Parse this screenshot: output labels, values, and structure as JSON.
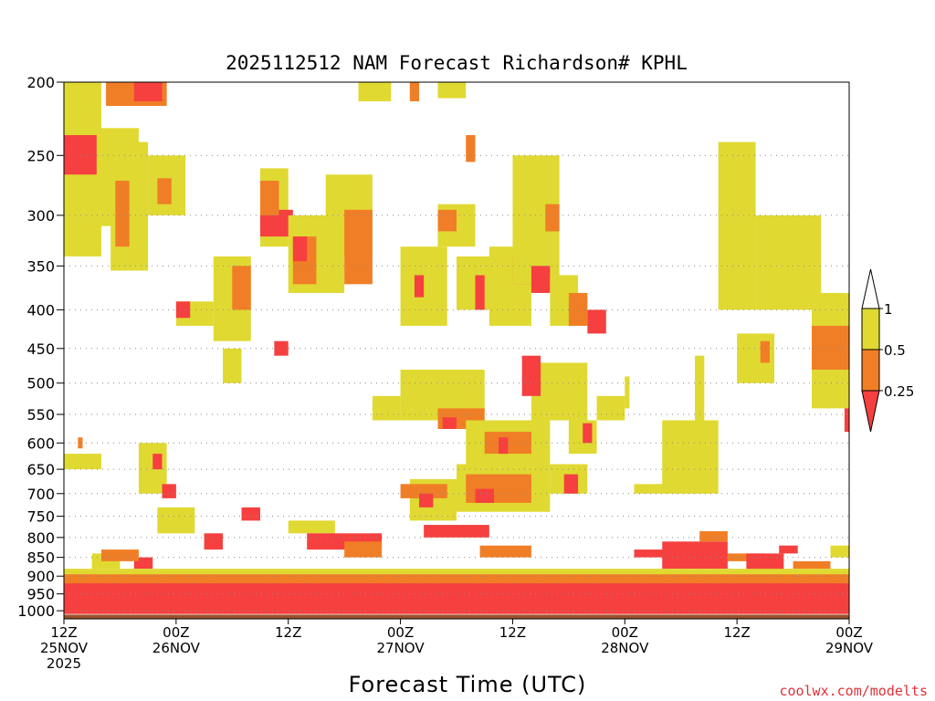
{
  "chart_data": {
    "type": "heatmap",
    "title": "2025112512 NAM Forecast Richardson# KPHL",
    "xlabel": "Forecast Time (UTC)",
    "ylabel": "",
    "credit": "coolwx.com/modelts",
    "y_scale": "log-pressure, inverted",
    "ylim": [
      1025,
      200
    ],
    "y_ticks": [
      200,
      250,
      300,
      350,
      400,
      450,
      500,
      550,
      600,
      650,
      700,
      750,
      800,
      850,
      900,
      950,
      1000
    ],
    "x_range_hours": [
      0,
      84
    ],
    "x_ticks": [
      {
        "hour": 0,
        "label1": "12Z",
        "label2": "25NOV",
        "label3": "2025"
      },
      {
        "hour": 12,
        "label1": "00Z",
        "label2": "26NOV",
        "label3": ""
      },
      {
        "hour": 24,
        "label1": "12Z",
        "label2": "",
        "label3": ""
      },
      {
        "hour": 36,
        "label1": "00Z",
        "label2": "27NOV",
        "label3": ""
      },
      {
        "hour": 48,
        "label1": "12Z",
        "label2": "",
        "label3": ""
      },
      {
        "hour": 60,
        "label1": "00Z",
        "label2": "28NOV",
        "label3": ""
      },
      {
        "hour": 72,
        "label1": "12Z",
        "label2": "",
        "label3": ""
      },
      {
        "hour": 84,
        "label1": "00Z",
        "label2": "29NOV",
        "label3": ""
      }
    ],
    "legend": {
      "levels": [
        "1",
        "0.5",
        "0.25"
      ],
      "bins": [
        {
          "range": "< 0.25",
          "color": "#f5403f"
        },
        {
          "range": "0.25 - 0.5",
          "color": "#f07e26"
        },
        {
          "range": "0.5 - 1",
          "color": "#e0d932"
        },
        {
          "range": "> 1",
          "color": "#ffffff"
        }
      ]
    },
    "ground_color": "#9b522b",
    "grid": "dotted horizontal lines at pressure levels",
    "regions": [
      {
        "bin": "0.5 - 1",
        "hours": [
          0,
          4
        ],
        "p": [
          200,
          340
        ]
      },
      {
        "bin": "0.5 - 1",
        "hours": [
          3,
          8
        ],
        "p": [
          230,
          310
        ]
      },
      {
        "bin": "< 0.25",
        "hours": [
          0,
          3.5
        ],
        "p": [
          235,
          265
        ]
      },
      {
        "bin": "0.25 - 0.5",
        "hours": [
          4.5,
          11
        ],
        "p": [
          200,
          215
        ]
      },
      {
        "bin": "< 0.25",
        "hours": [
          7.5,
          10.5
        ],
        "p": [
          200,
          212
        ]
      },
      {
        "bin": "0.5 - 1",
        "hours": [
          5,
          9
        ],
        "p": [
          240,
          355
        ]
      },
      {
        "bin": "0.25 - 0.5",
        "hours": [
          5.5,
          7
        ],
        "p": [
          270,
          330
        ]
      },
      {
        "bin": "0.5 - 1",
        "hours": [
          9,
          13
        ],
        "p": [
          250,
          300
        ]
      },
      {
        "bin": "0.25 - 0.5",
        "hours": [
          10,
          11.5
        ],
        "p": [
          268,
          290
        ]
      },
      {
        "bin": "0.5 - 1",
        "hours": [
          12,
          16
        ],
        "p": [
          390,
          420
        ]
      },
      {
        "bin": "< 0.25",
        "hours": [
          12,
          13.5
        ],
        "p": [
          390,
          410
        ]
      },
      {
        "bin": "0.5 - 1",
        "hours": [
          16,
          20
        ],
        "p": [
          340,
          440
        ]
      },
      {
        "bin": "0.25 - 0.5",
        "hours": [
          18,
          20
        ],
        "p": [
          350,
          400
        ]
      },
      {
        "bin": "0.5 - 1",
        "hours": [
          21,
          24
        ],
        "p": [
          260,
          330
        ]
      },
      {
        "bin": "< 0.25",
        "hours": [
          21,
          24.5
        ],
        "p": [
          295,
          320
        ]
      },
      {
        "bin": "0.25 - 0.5",
        "hours": [
          21,
          23
        ],
        "p": [
          270,
          300
        ]
      },
      {
        "bin": "0.5 - 1",
        "hours": [
          24,
          30
        ],
        "p": [
          300,
          380
        ]
      },
      {
        "bin": "0.25 - 0.5",
        "hours": [
          24.5,
          27
        ],
        "p": [
          320,
          370
        ]
      },
      {
        "bin": "< 0.25",
        "hours": [
          24.5,
          26
        ],
        "p": [
          320,
          345
        ]
      },
      {
        "bin": "0.5 - 1",
        "hours": [
          28,
          33
        ],
        "p": [
          265,
          340
        ]
      },
      {
        "bin": "0.25 - 0.5",
        "hours": [
          30,
          33
        ],
        "p": [
          295,
          370
        ]
      },
      {
        "bin": "0.5 - 1",
        "hours": [
          31.5,
          35
        ],
        "p": [
          200,
          212
        ]
      },
      {
        "bin": "0.25 - 0.5",
        "hours": [
          37,
          38
        ],
        "p": [
          200,
          212
        ]
      },
      {
        "bin": "0.5 - 1",
        "hours": [
          40,
          43
        ],
        "p": [
          200,
          210
        ]
      },
      {
        "bin": "0.5 - 1",
        "hours": [
          36,
          41
        ],
        "p": [
          330,
          420
        ]
      },
      {
        "bin": "< 0.25",
        "hours": [
          37.5,
          38.5
        ],
        "p": [
          360,
          385
        ]
      },
      {
        "bin": "0.5 - 1",
        "hours": [
          40,
          44
        ],
        "p": [
          290,
          330
        ]
      },
      {
        "bin": "0.25 - 0.5",
        "hours": [
          40,
          42
        ],
        "p": [
          295,
          315
        ]
      },
      {
        "bin": "0.5 - 1",
        "hours": [
          42,
          48
        ],
        "p": [
          340,
          400
        ]
      },
      {
        "bin": "< 0.25",
        "hours": [
          44,
          45
        ],
        "p": [
          360,
          400
        ]
      },
      {
        "bin": "0.5 - 1",
        "hours": [
          45.5,
          50
        ],
        "p": [
          330,
          420
        ]
      },
      {
        "bin": "< 0.25",
        "hours": [
          48,
          50
        ],
        "p": [
          340,
          370
        ]
      },
      {
        "bin": "0.5 - 1",
        "hours": [
          48,
          53
        ],
        "p": [
          250,
          370
        ]
      },
      {
        "bin": "< 0.25",
        "hours": [
          50,
          52
        ],
        "p": [
          350,
          380
        ]
      },
      {
        "bin": "0.5 - 1",
        "hours": [
          52,
          55
        ],
        "p": [
          360,
          420
        ]
      },
      {
        "bin": "0.25 - 0.5",
        "hours": [
          54,
          56
        ],
        "p": [
          380,
          420
        ]
      },
      {
        "bin": "< 0.25",
        "hours": [
          56,
          58
        ],
        "p": [
          400,
          430
        ]
      },
      {
        "bin": "0.25 - 0.5",
        "hours": [
          51.5,
          53
        ],
        "p": [
          290,
          315
        ]
      },
      {
        "bin": "0.25 - 0.5",
        "hours": [
          43,
          44
        ],
        "p": [
          235,
          255
        ]
      },
      {
        "bin": "0.5 - 1",
        "hours": [
          17,
          19
        ],
        "p": [
          450,
          500
        ]
      },
      {
        "bin": "< 0.25",
        "hours": [
          22.5,
          24
        ],
        "p": [
          440,
          460
        ]
      },
      {
        "bin": "0.5 - 1",
        "hours": [
          33,
          36
        ],
        "p": [
          520,
          560
        ]
      },
      {
        "bin": "0.5 - 1",
        "hours": [
          36,
          45
        ],
        "p": [
          480,
          560
        ]
      },
      {
        "bin": "0.25 - 0.5",
        "hours": [
          40,
          45
        ],
        "p": [
          540,
          575
        ]
      },
      {
        "bin": "< 0.25",
        "hours": [
          40.5,
          42
        ],
        "p": [
          555,
          575
        ]
      },
      {
        "bin": "0.5 - 1",
        "hours": [
          43,
          52
        ],
        "p": [
          560,
          640
        ]
      },
      {
        "bin": "0.25 - 0.5",
        "hours": [
          45,
          50
        ],
        "p": [
          580,
          620
        ]
      },
      {
        "bin": "< 0.25",
        "hours": [
          46.5,
          47.5
        ],
        "p": [
          590,
          620
        ]
      },
      {
        "bin": "0.5 - 1",
        "hours": [
          50,
          56
        ],
        "p": [
          470,
          560
        ]
      },
      {
        "bin": "< 0.25",
        "hours": [
          49,
          51
        ],
        "p": [
          460,
          520
        ]
      },
      {
        "bin": "0.5 - 1",
        "hours": [
          54,
          57
        ],
        "p": [
          560,
          620
        ]
      },
      {
        "bin": "< 0.25",
        "hours": [
          55.5,
          56.5
        ],
        "p": [
          565,
          600
        ]
      },
      {
        "bin": "0.5 - 1",
        "hours": [
          57,
          60
        ],
        "p": [
          520,
          560
        ]
      },
      {
        "bin": "0.5 - 1",
        "hours": [
          42,
          52
        ],
        "p": [
          640,
          740
        ]
      },
      {
        "bin": "0.25 - 0.5",
        "hours": [
          43,
          50
        ],
        "p": [
          660,
          720
        ]
      },
      {
        "bin": "< 0.25",
        "hours": [
          44,
          46
        ],
        "p": [
          690,
          720
        ]
      },
      {
        "bin": "0.5 - 1",
        "hours": [
          37,
          42
        ],
        "p": [
          670,
          760
        ]
      },
      {
        "bin": "0.25 - 0.5",
        "hours": [
          36,
          41
        ],
        "p": [
          680,
          710
        ]
      },
      {
        "bin": "< 0.25",
        "hours": [
          38,
          39.5
        ],
        "p": [
          700,
          730
        ]
      },
      {
        "bin": "0.5 - 1",
        "hours": [
          52,
          56
        ],
        "p": [
          640,
          700
        ]
      },
      {
        "bin": "< 0.25",
        "hours": [
          53.5,
          55
        ],
        "p": [
          660,
          700
        ]
      },
      {
        "bin": "0.5 - 1",
        "hours": [
          64,
          70
        ],
        "p": [
          560,
          700
        ]
      },
      {
        "bin": "0.5 - 1",
        "hours": [
          61,
          69
        ],
        "p": [
          680,
          700
        ]
      },
      {
        "bin": "0.5 - 1",
        "hours": [
          67.5,
          68.5
        ],
        "p": [
          460,
          560
        ]
      },
      {
        "bin": "0.5 - 1",
        "hours": [
          60,
          60.5
        ],
        "p": [
          490,
          540
        ]
      },
      {
        "bin": "0.5 - 1",
        "hours": [
          70,
          74
        ],
        "p": [
          240,
          400
        ]
      },
      {
        "bin": "0.5 - 1",
        "hours": [
          74,
          81
        ],
        "p": [
          300,
          400
        ]
      },
      {
        "bin": "0.5 - 1",
        "hours": [
          80,
          84
        ],
        "p": [
          380,
          540
        ]
      },
      {
        "bin": "0.25 - 0.5",
        "hours": [
          80,
          84
        ],
        "p": [
          420,
          480
        ]
      },
      {
        "bin": "< 0.25",
        "hours": [
          83.5,
          84
        ],
        "p": [
          540,
          580
        ]
      },
      {
        "bin": "0.5 - 1",
        "hours": [
          72,
          76
        ],
        "p": [
          430,
          500
        ]
      },
      {
        "bin": "0.25 - 0.5",
        "hours": [
          74.5,
          75.5
        ],
        "p": [
          440,
          470
        ]
      },
      {
        "bin": "0.5 - 1",
        "hours": [
          0,
          4
        ],
        "p": [
          620,
          650
        ]
      },
      {
        "bin": "0.25 - 0.5",
        "hours": [
          1.5,
          2
        ],
        "p": [
          590,
          610
        ]
      },
      {
        "bin": "0.5 - 1",
        "hours": [
          8,
          11
        ],
        "p": [
          600,
          700
        ]
      },
      {
        "bin": "< 0.25",
        "hours": [
          9.5,
          10.5
        ],
        "p": [
          620,
          650
        ]
      },
      {
        "bin": "< 0.25",
        "hours": [
          10.5,
          12
        ],
        "p": [
          680,
          710
        ]
      },
      {
        "bin": "0.5 - 1",
        "hours": [
          10,
          14
        ],
        "p": [
          730,
          790
        ]
      },
      {
        "bin": "< 0.25",
        "hours": [
          19,
          21
        ],
        "p": [
          730,
          760
        ]
      },
      {
        "bin": "0.5 - 1",
        "hours": [
          24,
          29
        ],
        "p": [
          760,
          790
        ]
      },
      {
        "bin": "< 0.25",
        "hours": [
          26,
          34
        ],
        "p": [
          790,
          830
        ]
      },
      {
        "bin": "0.25 - 0.5",
        "hours": [
          30,
          34
        ],
        "p": [
          810,
          850
        ]
      },
      {
        "bin": "< 0.25",
        "hours": [
          15,
          17
        ],
        "p": [
          790,
          830
        ]
      },
      {
        "bin": "< 0.25",
        "hours": [
          7.5,
          9.5
        ],
        "p": [
          850,
          880
        ]
      },
      {
        "bin": "0.5 - 1",
        "hours": [
          3,
          6
        ],
        "p": [
          840,
          880
        ]
      },
      {
        "bin": "0.25 - 0.5",
        "hours": [
          4,
          8
        ],
        "p": [
          830,
          860
        ]
      },
      {
        "bin": "< 0.25",
        "hours": [
          38.5,
          45.5
        ],
        "p": [
          770,
          800
        ]
      },
      {
        "bin": "0.25 - 0.5",
        "hours": [
          44.5,
          50
        ],
        "p": [
          820,
          850
        ]
      },
      {
        "bin": "< 0.25",
        "hours": [
          61,
          68
        ],
        "p": [
          830,
          850
        ]
      },
      {
        "bin": "< 0.25",
        "hours": [
          64,
          71
        ],
        "p": [
          810,
          880
        ]
      },
      {
        "bin": "0.25 - 0.5",
        "hours": [
          68,
          71
        ],
        "p": [
          785,
          810
        ]
      },
      {
        "bin": "0.25 - 0.5",
        "hours": [
          71,
          75
        ],
        "p": [
          840,
          860
        ]
      },
      {
        "bin": "< 0.25",
        "hours": [
          73,
          77
        ],
        "p": [
          840,
          890
        ]
      },
      {
        "bin": "< 0.25",
        "hours": [
          76.5,
          78.5
        ],
        "p": [
          820,
          840
        ]
      },
      {
        "bin": "0.25 - 0.5",
        "hours": [
          78,
          82
        ],
        "p": [
          860,
          880
        ]
      },
      {
        "bin": "0.5 - 1",
        "hours": [
          82,
          84
        ],
        "p": [
          820,
          850
        ]
      },
      {
        "bin": "0.5 - 1",
        "hours": [
          0,
          84
        ],
        "p": [
          880,
          920
        ]
      },
      {
        "bin": "0.25 - 0.5",
        "hours": [
          0,
          84
        ],
        "p": [
          895,
          960
        ]
      },
      {
        "bin": "< 0.25",
        "hours": [
          0,
          84
        ],
        "p": [
          920,
          1000
        ]
      },
      {
        "bin": "< 0.25",
        "hours": [
          0,
          84
        ],
        "p": [
          970,
          1010
        ]
      }
    ]
  }
}
